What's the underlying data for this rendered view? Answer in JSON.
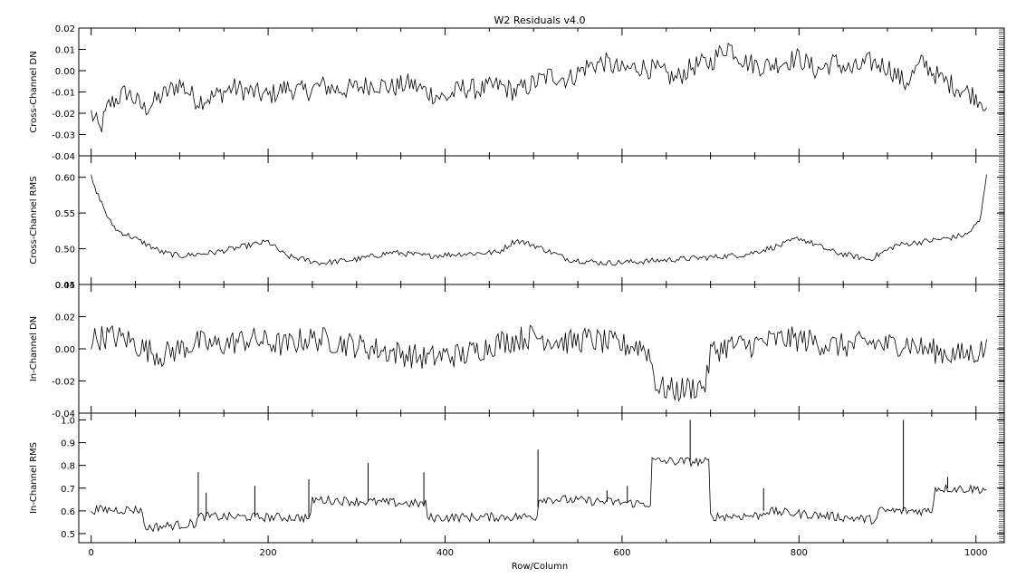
{
  "figure": {
    "title": "W2 Residuals v4.0",
    "xlabel": "Row/Column",
    "x_ticks": [
      0,
      200,
      400,
      600,
      800,
      1000
    ],
    "xlim": [
      -14,
      1032
    ]
  },
  "chart_data": [
    {
      "type": "line",
      "ylabel": "Cross-Channel DN",
      "ylim": [
        -0.04,
        0.02
      ],
      "y_ticks": [
        -0.04,
        -0.03,
        -0.02,
        -0.01,
        0.0,
        0.01,
        0.02
      ],
      "y_tick_labels": [
        "-0.04",
        "-0.03",
        "-0.02",
        "-0.01",
        "0.00",
        "0.01",
        "0.02"
      ],
      "x": [
        0,
        10,
        20,
        40,
        60,
        80,
        100,
        120,
        140,
        160,
        180,
        200,
        220,
        240,
        260,
        280,
        300,
        320,
        340,
        360,
        380,
        400,
        420,
        440,
        460,
        480,
        500,
        520,
        540,
        560,
        580,
        600,
        620,
        640,
        660,
        680,
        700,
        720,
        740,
        760,
        780,
        800,
        820,
        840,
        860,
        880,
        900,
        920,
        940,
        960,
        980,
        1000,
        1013
      ],
      "y": [
        -0.02,
        -0.028,
        -0.016,
        -0.01,
        -0.018,
        -0.012,
        -0.006,
        -0.014,
        -0.012,
        -0.008,
        -0.01,
        -0.012,
        -0.008,
        -0.01,
        -0.007,
        -0.009,
        -0.008,
        -0.006,
        -0.008,
        -0.006,
        -0.01,
        -0.013,
        -0.008,
        -0.009,
        -0.007,
        -0.01,
        -0.006,
        -0.002,
        -0.004,
        0.002,
        0.004,
        0.0,
        0.002,
        0.0,
        -0.004,
        0.002,
        0.004,
        0.012,
        0.004,
        0.002,
        0.004,
        0.006,
        0.0,
        0.004,
        0.0,
        0.004,
        0.002,
        -0.006,
        0.004,
        -0.004,
        -0.008,
        -0.012,
        -0.016
      ],
      "noise": 0.005
    },
    {
      "type": "line",
      "ylabel": "Cross-Channel RMS",
      "ylim": [
        0.45,
        0.63
      ],
      "y_ticks": [
        0.45,
        0.5,
        0.55,
        0.6
      ],
      "y_tick_labels": [
        "0.45",
        "0.50",
        "0.55",
        "0.60"
      ],
      "x": [
        0,
        5,
        10,
        20,
        30,
        40,
        60,
        80,
        100,
        140,
        180,
        200,
        220,
        260,
        300,
        340,
        380,
        420,
        460,
        480,
        500,
        540,
        580,
        620,
        660,
        700,
        740,
        780,
        800,
        840,
        880,
        910,
        940,
        970,
        990,
        1005,
        1013
      ],
      "y": [
        0.6,
        0.58,
        0.57,
        0.54,
        0.525,
        0.52,
        0.508,
        0.495,
        0.49,
        0.495,
        0.505,
        0.51,
        0.49,
        0.48,
        0.485,
        0.495,
        0.49,
        0.493,
        0.495,
        0.512,
        0.505,
        0.485,
        0.48,
        0.482,
        0.485,
        0.488,
        0.492,
        0.505,
        0.515,
        0.495,
        0.485,
        0.505,
        0.51,
        0.515,
        0.52,
        0.54,
        0.615
      ],
      "noise": 0.004
    },
    {
      "type": "line",
      "ylabel": "In-Channel DN",
      "ylim": [
        -0.04,
        0.04
      ],
      "y_ticks": [
        -0.04,
        -0.02,
        0.0,
        0.02,
        0.04
      ],
      "y_tick_labels": [
        "-0.04",
        "-0.02",
        "0.00",
        "0.02",
        "0.04"
      ],
      "x": [
        0,
        20,
        40,
        60,
        80,
        100,
        120,
        140,
        160,
        180,
        200,
        220,
        240,
        260,
        280,
        300,
        320,
        340,
        360,
        380,
        400,
        420,
        440,
        460,
        480,
        500,
        520,
        540,
        560,
        580,
        600,
        620,
        630,
        640,
        660,
        680,
        695,
        700,
        720,
        740,
        760,
        780,
        800,
        820,
        840,
        860,
        880,
        900,
        920,
        940,
        960,
        980,
        1000,
        1013
      ],
      "y": [
        0.006,
        0.008,
        0.006,
        0.0,
        -0.004,
        0.0,
        0.004,
        0.002,
        0.004,
        0.006,
        0.004,
        0.002,
        0.006,
        0.006,
        0.004,
        0.002,
        0.0,
        -0.002,
        -0.004,
        -0.006,
        -0.004,
        -0.004,
        0.0,
        0.004,
        0.006,
        0.008,
        0.006,
        0.004,
        0.006,
        0.004,
        0.002,
        0.002,
        -0.002,
        -0.024,
        -0.026,
        -0.024,
        -0.022,
        -0.002,
        0.002,
        0.002,
        0.004,
        0.006,
        0.006,
        0.004,
        0.002,
        0.002,
        0.004,
        0.002,
        0.004,
        0.0,
        -0.002,
        -0.004,
        -0.002,
        0.0
      ],
      "noise": 0.008
    },
    {
      "type": "line",
      "ylabel": "In-Channel RMS",
      "ylim": [
        0.46,
        1.03
      ],
      "y_ticks": [
        0.5,
        0.6,
        0.7,
        0.8,
        0.9,
        1.0
      ],
      "y_tick_labels": [
        "0.5",
        "0.6",
        "0.7",
        "0.8",
        "0.9",
        "1.0"
      ],
      "x": [
        0,
        58,
        60,
        119,
        121,
        248,
        250,
        378,
        380,
        504,
        506,
        632,
        634,
        698,
        700,
        758,
        760,
        888,
        890,
        951,
        953,
        1013
      ],
      "y": [
        0.605,
        0.605,
        0.525,
        0.545,
        0.575,
        0.57,
        0.65,
        0.63,
        0.57,
        0.575,
        0.655,
        0.63,
        0.82,
        0.815,
        0.575,
        0.58,
        0.6,
        0.56,
        0.6,
        0.6,
        0.7,
        0.695
      ],
      "noise": 0.02,
      "spikes": [
        [
          121,
          0.77
        ],
        [
          313,
          0.81
        ],
        [
          376,
          0.77
        ],
        [
          505,
          0.87
        ],
        [
          677,
          1.0
        ],
        [
          918,
          1.0
        ],
        [
          968,
          0.75
        ],
        [
          130,
          0.68
        ],
        [
          185,
          0.71
        ],
        [
          246,
          0.74
        ],
        [
          583,
          0.69
        ],
        [
          606,
          0.71
        ],
        [
          760,
          0.7
        ]
      ]
    }
  ]
}
